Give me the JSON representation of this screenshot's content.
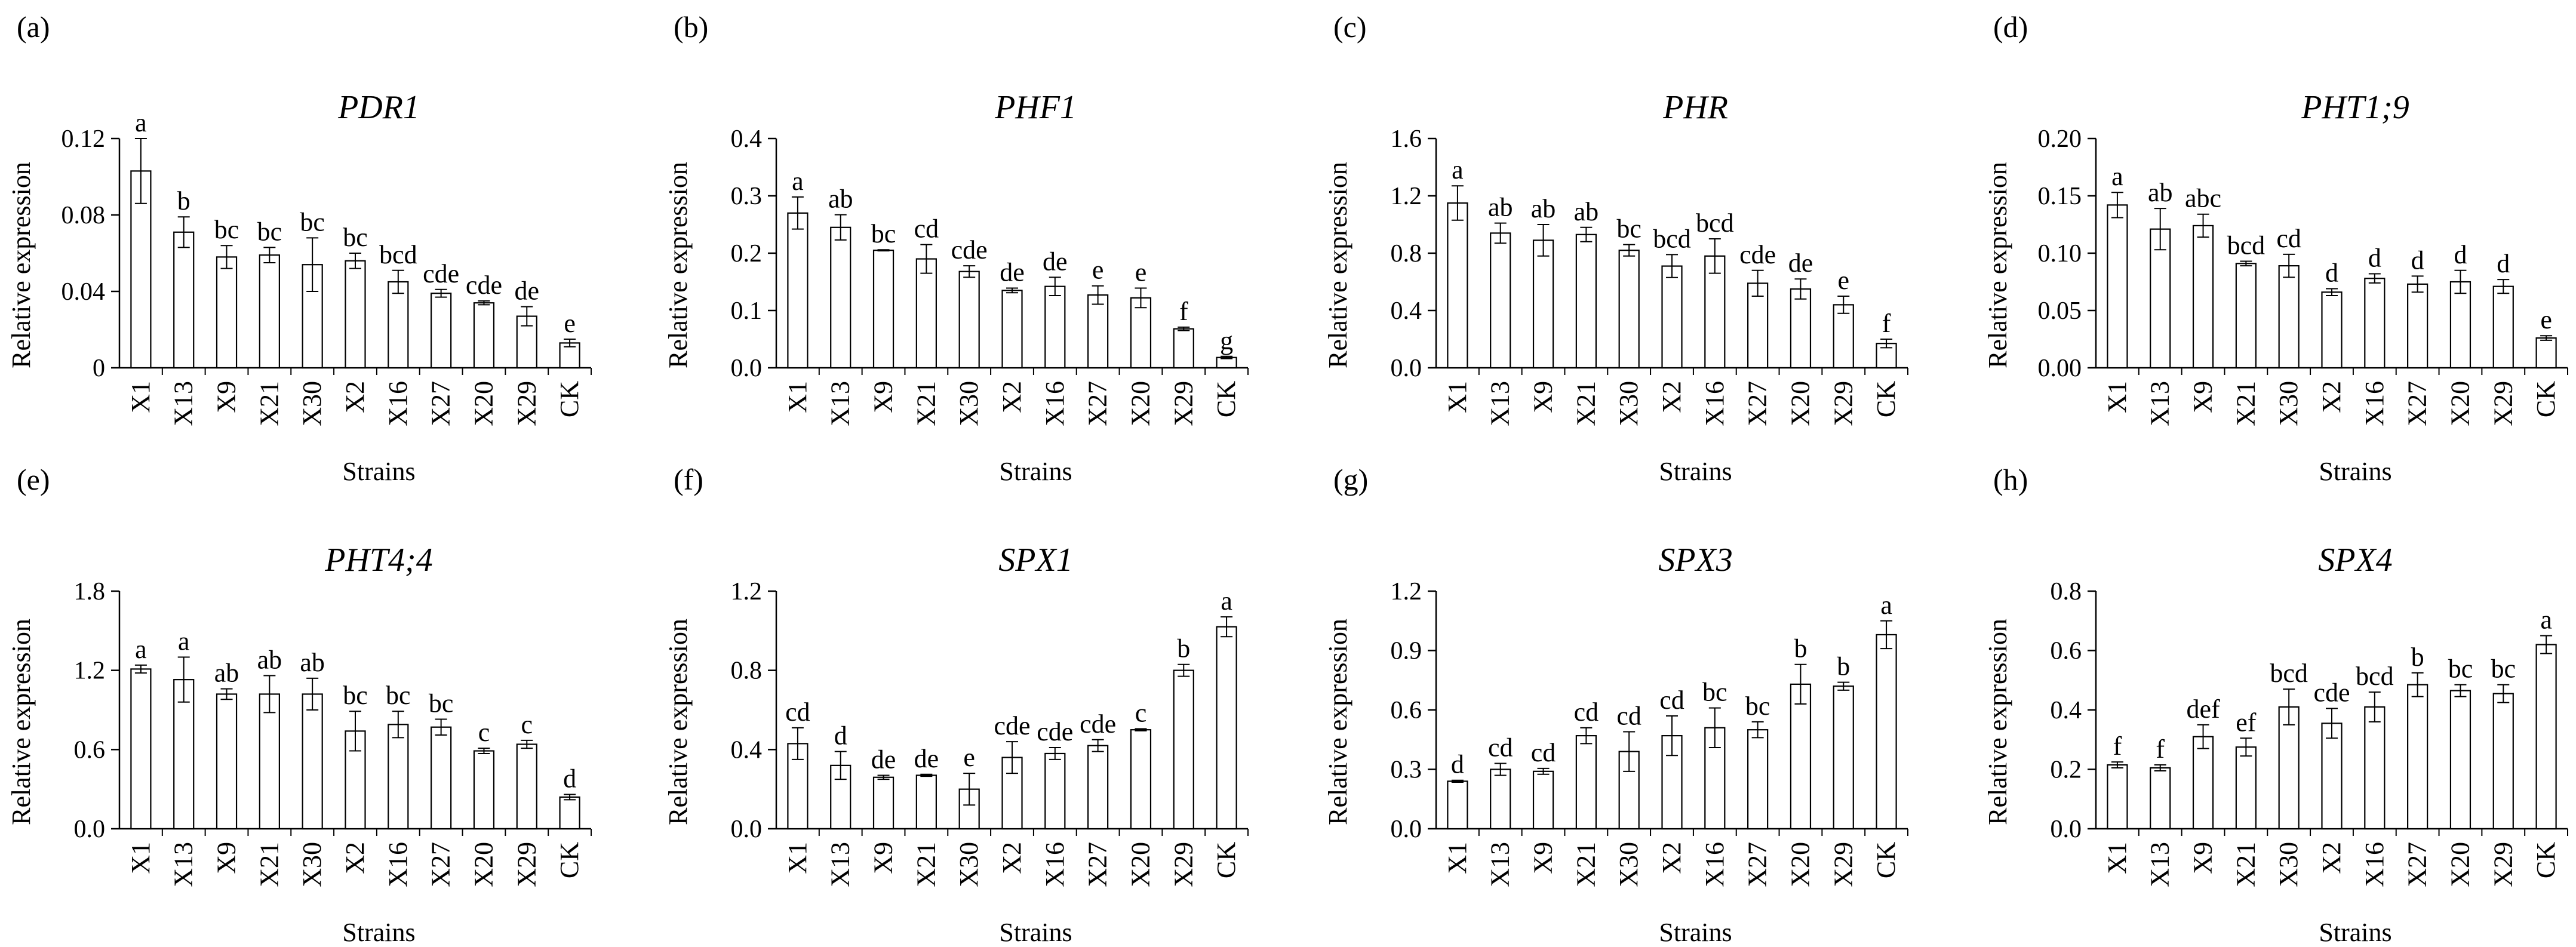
{
  "figure": {
    "background": "#ffffff",
    "bar_fill": "#ffffff",
    "stroke": "#000000"
  },
  "chart_data": [
    {
      "type": "bar",
      "panel": "(a)",
      "title": "PDR1",
      "xlabel": "Strains",
      "ylabel": "Relative expression",
      "ylim": [
        0,
        0.12
      ],
      "yticks": [
        "0",
        "0.04",
        "0.08",
        "0.12"
      ],
      "categories": [
        "X1",
        "X13",
        "X9",
        "X21",
        "X30",
        "X2",
        "X16",
        "X27",
        "X20",
        "X29",
        "CK"
      ],
      "values": [
        0.103,
        0.071,
        0.058,
        0.059,
        0.054,
        0.056,
        0.045,
        0.039,
        0.034,
        0.027,
        0.013
      ],
      "errors": [
        0.017,
        0.008,
        0.006,
        0.004,
        0.014,
        0.004,
        0.006,
        0.002,
        0.001,
        0.005,
        0.002
      ],
      "letters": [
        "a",
        "b",
        "bc",
        "bc",
        "bc",
        "bc",
        "bcd",
        "cde",
        "cde",
        "de",
        "e"
      ]
    },
    {
      "type": "bar",
      "panel": "(b)",
      "title": "PHF1",
      "xlabel": "Strains",
      "ylabel": "Relative expression",
      "ylim": [
        0,
        0.4
      ],
      "yticks": [
        "0.0",
        "0.1",
        "0.2",
        "0.3",
        "0.4"
      ],
      "categories": [
        "X1",
        "X13",
        "X9",
        "X21",
        "X30",
        "X2",
        "X16",
        "X27",
        "X20",
        "X29",
        "CK"
      ],
      "values": [
        0.27,
        0.245,
        0.205,
        0.19,
        0.168,
        0.135,
        0.142,
        0.127,
        0.122,
        0.068,
        0.018
      ],
      "errors": [
        0.028,
        0.022,
        0.001,
        0.025,
        0.01,
        0.004,
        0.016,
        0.016,
        0.017,
        0.003,
        0.002
      ],
      "letters": [
        "a",
        "ab",
        "bc",
        "cd",
        "cde",
        "de",
        "de",
        "e",
        "e",
        "f",
        "g"
      ]
    },
    {
      "type": "bar",
      "panel": "(c)",
      "title": "PHR",
      "xlabel": "Strains",
      "ylabel": "Relative expression",
      "ylim": [
        0,
        1.6
      ],
      "yticks": [
        "0.0",
        "0.4",
        "0.8",
        "1.2",
        "1.6"
      ],
      "categories": [
        "X1",
        "X13",
        "X9",
        "X21",
        "X30",
        "X2",
        "X16",
        "X27",
        "X20",
        "X29",
        "CK"
      ],
      "values": [
        1.15,
        0.94,
        0.89,
        0.93,
        0.82,
        0.71,
        0.78,
        0.59,
        0.55,
        0.44,
        0.17
      ],
      "errors": [
        0.12,
        0.07,
        0.11,
        0.05,
        0.04,
        0.08,
        0.12,
        0.09,
        0.07,
        0.06,
        0.03
      ],
      "letters": [
        "a",
        "ab",
        "ab",
        "ab",
        "bc",
        "bcd",
        "bcd",
        "cde",
        "de",
        "e",
        "f"
      ]
    },
    {
      "type": "bar",
      "panel": "(d)",
      "title": "PHT1;9",
      "xlabel": "Strains",
      "ylabel": "Relative expression",
      "ylim": [
        0,
        0.2
      ],
      "yticks": [
        "0.00",
        "0.05",
        "0.10",
        "0.15",
        "0.20"
      ],
      "categories": [
        "X1",
        "X13",
        "X9",
        "X21",
        "X30",
        "X2",
        "X16",
        "X27",
        "X20",
        "X29",
        "CK"
      ],
      "values": [
        0.142,
        0.121,
        0.124,
        0.091,
        0.089,
        0.066,
        0.078,
        0.073,
        0.075,
        0.071,
        0.026
      ],
      "errors": [
        0.011,
        0.018,
        0.01,
        0.002,
        0.01,
        0.003,
        0.004,
        0.007,
        0.01,
        0.006,
        0.002
      ],
      "letters": [
        "a",
        "ab",
        "abc",
        "bcd",
        "cd",
        "d",
        "d",
        "d",
        "d",
        "d",
        "e"
      ]
    },
    {
      "type": "bar",
      "panel": "(e)",
      "title": "PHT4;4",
      "xlabel": "Strains",
      "ylabel": "Relative expression",
      "ylim": [
        0,
        1.8
      ],
      "yticks": [
        "0.0",
        "0.6",
        "1.2",
        "1.8"
      ],
      "categories": [
        "X1",
        "X13",
        "X9",
        "X21",
        "X30",
        "X2",
        "X16",
        "X27",
        "X20",
        "X29",
        "CK"
      ],
      "values": [
        1.21,
        1.13,
        1.02,
        1.02,
        1.02,
        0.74,
        0.79,
        0.77,
        0.59,
        0.64,
        0.24
      ],
      "errors": [
        0.03,
        0.17,
        0.04,
        0.14,
        0.12,
        0.15,
        0.1,
        0.06,
        0.02,
        0.03,
        0.02
      ],
      "letters": [
        "a",
        "a",
        "ab",
        "ab",
        "ab",
        "bc",
        "bc",
        "bc",
        "c",
        "c",
        "d"
      ]
    },
    {
      "type": "bar",
      "panel": "(f)",
      "title": "SPX1",
      "xlabel": "Strains",
      "ylabel": "Relative expression",
      "ylim": [
        0,
        1.2
      ],
      "yticks": [
        "0.0",
        "0.4",
        "0.8",
        "1.2"
      ],
      "categories": [
        "X1",
        "X13",
        "X9",
        "X21",
        "X30",
        "X2",
        "X16",
        "X27",
        "X20",
        "X29",
        "CK"
      ],
      "values": [
        0.43,
        0.32,
        0.26,
        0.27,
        0.2,
        0.36,
        0.38,
        0.42,
        0.5,
        0.8,
        1.02
      ],
      "errors": [
        0.08,
        0.07,
        0.01,
        0.005,
        0.08,
        0.08,
        0.03,
        0.03,
        0.005,
        0.03,
        0.05
      ],
      "letters": [
        "cd",
        "d",
        "de",
        "de",
        "e",
        "cde",
        "cde",
        "cde",
        "c",
        "b",
        "a"
      ]
    },
    {
      "type": "bar",
      "panel": "(g)",
      "title": "SPX3",
      "xlabel": "Strains",
      "ylabel": "Relative expression",
      "ylim": [
        0,
        1.2
      ],
      "yticks": [
        "0.0",
        "0.3",
        "0.6",
        "0.9",
        "1.2"
      ],
      "categories": [
        "X1",
        "X13",
        "X9",
        "X21",
        "X30",
        "X2",
        "X16",
        "X27",
        "X20",
        "X29",
        "CK"
      ],
      "values": [
        0.24,
        0.3,
        0.29,
        0.47,
        0.39,
        0.47,
        0.51,
        0.5,
        0.73,
        0.72,
        0.98
      ],
      "errors": [
        0.005,
        0.03,
        0.015,
        0.04,
        0.1,
        0.1,
        0.1,
        0.04,
        0.1,
        0.02,
        0.07
      ],
      "letters": [
        "d",
        "cd",
        "cd",
        "cd",
        "cd",
        "cd",
        "bc",
        "bc",
        "b",
        "b",
        "a"
      ]
    },
    {
      "type": "bar",
      "panel": "(h)",
      "title": "SPX4",
      "xlabel": "Strains",
      "ylabel": "Relative expression",
      "ylim": [
        0,
        0.8
      ],
      "yticks": [
        "0.0",
        "0.2",
        "0.4",
        "0.6",
        "0.8"
      ],
      "categories": [
        "X1",
        "X13",
        "X9",
        "X21",
        "X30",
        "X2",
        "X16",
        "X27",
        "X20",
        "X29",
        "CK"
      ],
      "values": [
        0.215,
        0.205,
        0.31,
        0.275,
        0.41,
        0.355,
        0.41,
        0.485,
        0.465,
        0.455,
        0.62
      ],
      "errors": [
        0.01,
        0.01,
        0.04,
        0.03,
        0.06,
        0.05,
        0.05,
        0.04,
        0.02,
        0.03,
        0.03
      ],
      "letters": [
        "f",
        "f",
        "def",
        "ef",
        "bcd",
        "cde",
        "bcd",
        "b",
        "bc",
        "bc",
        "a"
      ]
    }
  ]
}
